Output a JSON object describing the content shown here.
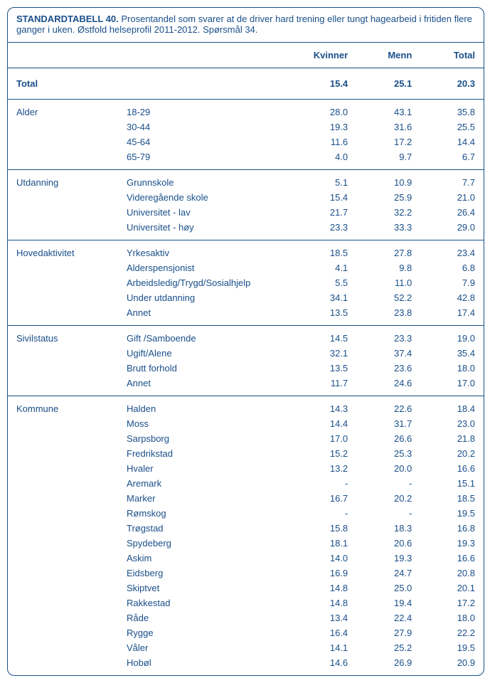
{
  "title": "STANDARDTABELL 40.",
  "description": "Prosentandel som svarer at de driver hard trening eller tungt hagearbeid i fritiden flere ganger i uken. Østfold helseprofil 2011-2012. Spørsmål 34.",
  "columns": [
    "Kvinner",
    "Menn",
    "Total"
  ],
  "total_label": "Total",
  "total_values": [
    "15.4",
    "25.1",
    "20.3"
  ],
  "sections": [
    {
      "name": "Alder",
      "rows": [
        {
          "label": "18-29",
          "v": [
            "28.0",
            "43.1",
            "35.8"
          ]
        },
        {
          "label": "30-44",
          "v": [
            "19.3",
            "31.6",
            "25.5"
          ]
        },
        {
          "label": "45-64",
          "v": [
            "11.6",
            "17.2",
            "14.4"
          ]
        },
        {
          "label": "65-79",
          "v": [
            "4.0",
            "9.7",
            "6.7"
          ]
        }
      ]
    },
    {
      "name": "Utdanning",
      "rows": [
        {
          "label": "Grunnskole",
          "v": [
            "5.1",
            "10.9",
            "7.7"
          ]
        },
        {
          "label": "Videregående skole",
          "v": [
            "15.4",
            "25.9",
            "21.0"
          ]
        },
        {
          "label": "Universitet - lav",
          "v": [
            "21.7",
            "32.2",
            "26.4"
          ]
        },
        {
          "label": "Universitet - høy",
          "v": [
            "23.3",
            "33.3",
            "29.0"
          ]
        }
      ]
    },
    {
      "name": "Hovedaktivitet",
      "rows": [
        {
          "label": "Yrkesaktiv",
          "v": [
            "18.5",
            "27.8",
            "23.4"
          ]
        },
        {
          "label": "Alderspensjonist",
          "v": [
            "4.1",
            "9.8",
            "6.8"
          ]
        },
        {
          "label": "Arbeidsledig/Trygd/Sosialhjelp",
          "v": [
            "5.5",
            "11.0",
            "7.9"
          ]
        },
        {
          "label": "Under utdanning",
          "v": [
            "34.1",
            "52.2",
            "42.8"
          ]
        },
        {
          "label": "Annet",
          "v": [
            "13.5",
            "23.8",
            "17.4"
          ]
        }
      ]
    },
    {
      "name": "Sivilstatus",
      "rows": [
        {
          "label": "Gift /Samboende",
          "v": [
            "14.5",
            "23.3",
            "19.0"
          ]
        },
        {
          "label": "Ugift/Alene",
          "v": [
            "32.1",
            "37.4",
            "35.4"
          ]
        },
        {
          "label": "Brutt forhold",
          "v": [
            "13.5",
            "23.6",
            "18.0"
          ]
        },
        {
          "label": "Annet",
          "v": [
            "11.7",
            "24.6",
            "17.0"
          ]
        }
      ]
    },
    {
      "name": "Kommune",
      "rows": [
        {
          "label": "Halden",
          "v": [
            "14.3",
            "22.6",
            "18.4"
          ]
        },
        {
          "label": "Moss",
          "v": [
            "14.4",
            "31.7",
            "23.0"
          ]
        },
        {
          "label": "Sarpsborg",
          "v": [
            "17.0",
            "26.6",
            "21.8"
          ]
        },
        {
          "label": "Fredrikstad",
          "v": [
            "15.2",
            "25.3",
            "20.2"
          ]
        },
        {
          "label": "Hvaler",
          "v": [
            "13.2",
            "20.0",
            "16.6"
          ]
        },
        {
          "label": "Aremark",
          "v": [
            "-",
            "-",
            "15.1"
          ]
        },
        {
          "label": "Marker",
          "v": [
            "16.7",
            "20.2",
            "18.5"
          ]
        },
        {
          "label": "Rømskog",
          "v": [
            "-",
            "-",
            "19.5"
          ]
        },
        {
          "label": "Trøgstad",
          "v": [
            "15.8",
            "18.3",
            "16.8"
          ]
        },
        {
          "label": "Spydeberg",
          "v": [
            "18.1",
            "20.6",
            "19.3"
          ]
        },
        {
          "label": "Askim",
          "v": [
            "14.0",
            "19.3",
            "16.6"
          ]
        },
        {
          "label": "Eidsberg",
          "v": [
            "16.9",
            "24.7",
            "20.8"
          ]
        },
        {
          "label": "Skiptvet",
          "v": [
            "14.8",
            "25.0",
            "20.1"
          ]
        },
        {
          "label": "Rakkestad",
          "v": [
            "14.8",
            "19.4",
            "17.2"
          ]
        },
        {
          "label": "Råde",
          "v": [
            "13.4",
            "22.4",
            "18.0"
          ]
        },
        {
          "label": "Rygge",
          "v": [
            "16.4",
            "27.9",
            "22.2"
          ]
        },
        {
          "label": "Våler",
          "v": [
            "14.1",
            "25.2",
            "19.5"
          ]
        },
        {
          "label": "Hobøl",
          "v": [
            "14.6",
            "26.9",
            "20.9"
          ]
        }
      ]
    }
  ]
}
